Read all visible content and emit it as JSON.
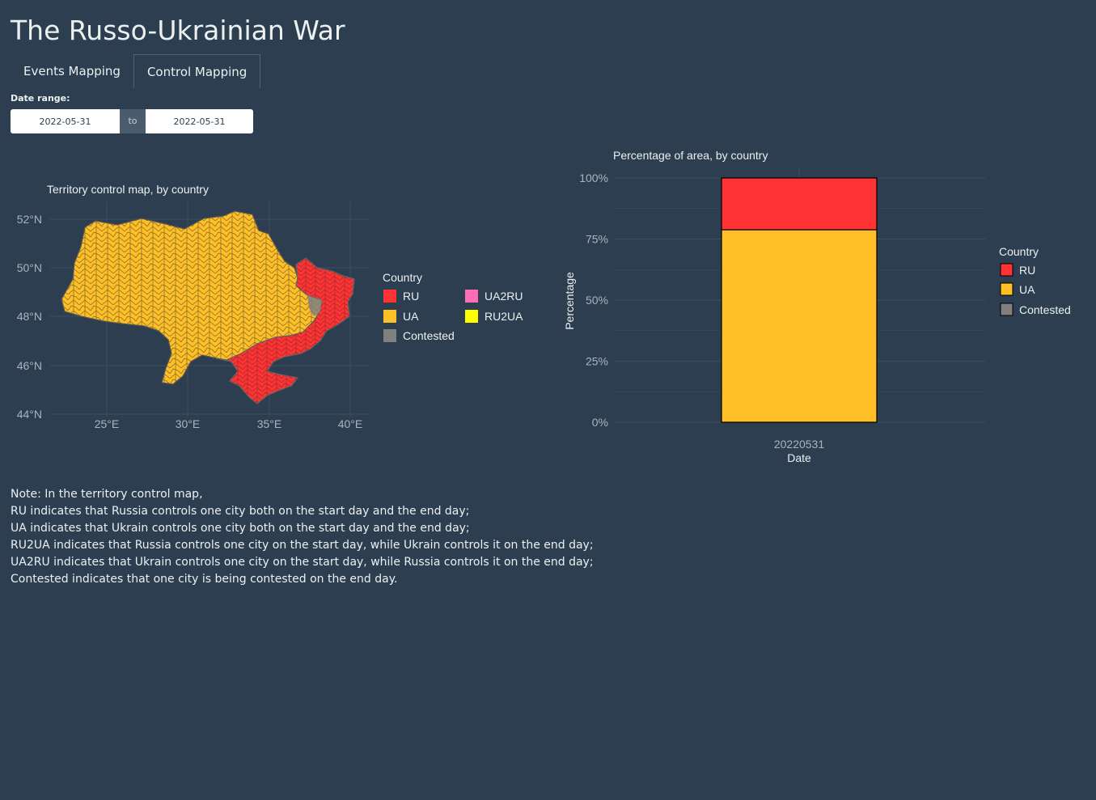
{
  "app_title": "The Russo-Ukrainian War",
  "tabs": [
    {
      "label": "Events Mapping",
      "active": false
    },
    {
      "label": "Control Mapping",
      "active": true
    }
  ],
  "date_range": {
    "label": "Date range:",
    "start": "2022-05-31",
    "separator": "to",
    "end": "2022-05-31"
  },
  "colors": {
    "background": "#2c3e50",
    "RU": "#ff3333",
    "UA": "#ffbf26",
    "Contested": "#808080",
    "UA2RU": "#ff6eb4",
    "RU2UA": "#ffff00",
    "grid": "#3b4d60",
    "axis_text": "#aab4bf"
  },
  "map": {
    "title": "Territory control map, by country",
    "lat_ticks": [
      "52°N",
      "50°N",
      "48°N",
      "46°N",
      "44°N"
    ],
    "lon_ticks": [
      "25°E",
      "30°E",
      "35°E",
      "40°E"
    ],
    "legend_title": "Country",
    "legend_items": [
      {
        "label": "RU",
        "color_key": "RU"
      },
      {
        "label": "UA2RU",
        "color_key": "UA2RU"
      },
      {
        "label": "UA",
        "color_key": "UA"
      },
      {
        "label": "RU2UA",
        "color_key": "RU2UA"
      },
      {
        "label": "Contested",
        "color_key": "Contested"
      }
    ]
  },
  "chart_data": {
    "type": "bar",
    "title": "Percentage of area, by country",
    "xlabel": "Date",
    "ylabel": "Percentage",
    "categories": [
      "20220531"
    ],
    "series": [
      {
        "name": "UA",
        "values": [
          78.8
        ]
      },
      {
        "name": "RU",
        "values": [
          21.2
        ]
      },
      {
        "name": "Contested",
        "values": [
          0
        ]
      }
    ],
    "stacked": true,
    "ylim": [
      0,
      100
    ],
    "yticks": [
      "0%",
      "25%",
      "50%",
      "75%",
      "100%"
    ],
    "legend_title": "Country",
    "legend_items": [
      "RU",
      "UA",
      "Contested"
    ],
    "legend_position": "right",
    "grid": true
  },
  "note_lines": [
    "Note: In the territory control map,",
    "RU indicates that Russia controls one city both on the start day and the end day;",
    "UA indicates that Ukrain controls one city both on the start day and the end day;",
    "RU2UA indicates that Russia controls one city on the start day, while Ukrain controls it on the end day;",
    "UA2RU indicates that Ukrain controls one city on the start day, while Russia controls it on the end day;",
    "Contested indicates that one city is being contested on the end day."
  ]
}
